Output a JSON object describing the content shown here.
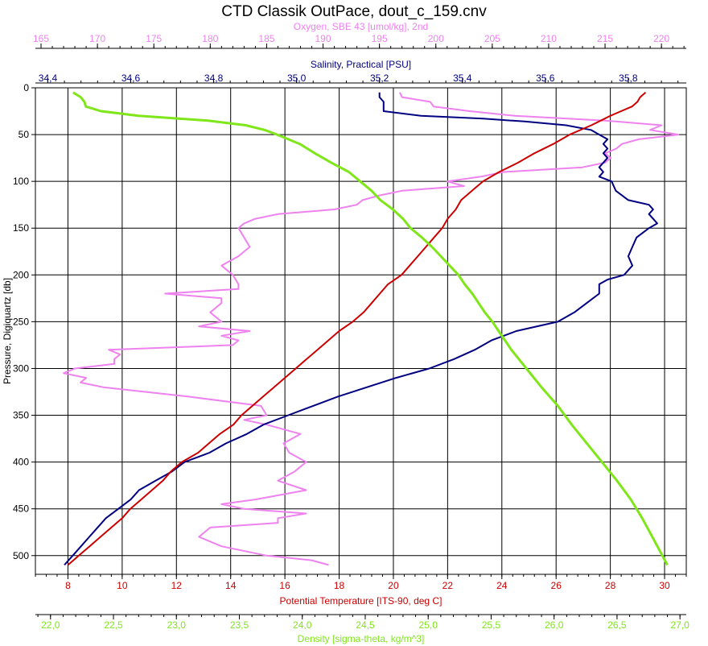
{
  "chart_data": {
    "type": "line",
    "title": "CTD Classik OutPace, dout_c_159.cnv",
    "colors": {
      "oxygen": "#ee82ee",
      "salinity": "#000080",
      "temperature": "#cc0000",
      "density": "#7fe61a",
      "grid": "#000000"
    },
    "grid": true,
    "y_axis": {
      "label": "Pressure, Digiquartz [db]",
      "range": [
        0,
        520
      ],
      "inverted": true,
      "ticks": [
        0,
        50,
        100,
        150,
        200,
        250,
        300,
        350,
        400,
        450,
        500
      ]
    },
    "x_axes": [
      {
        "key": "oxygen",
        "label": "Oxygen, SBE 43 [umol/kg], 2nd",
        "position": "top-outer",
        "range": [
          164.5,
          222.2
        ],
        "ticks": [
          165,
          170,
          175,
          180,
          185,
          190,
          195,
          200,
          205,
          210,
          215,
          220
        ],
        "tick_labels": [
          "165",
          "170",
          "175",
          "180",
          "185",
          "190",
          "195",
          "200",
          "205",
          "210",
          "215",
          "220"
        ]
      },
      {
        "key": "salinity",
        "label": "Salinity, Practical [PSU]",
        "position": "top-inner",
        "range": [
          34.37,
          35.94
        ],
        "ticks": [
          34.4,
          34.6,
          34.8,
          35.0,
          35.2,
          35.4,
          35.6,
          35.8
        ],
        "tick_labels": [
          "34,4",
          "34,6",
          "34,8",
          "35,0",
          "35,2",
          "35,4",
          "35,6",
          "35,8"
        ]
      },
      {
        "key": "temperature",
        "label": "Potential Temperature [ITS-90, deg C]",
        "position": "bottom-inner",
        "range": [
          6.8,
          30.8
        ],
        "ticks": [
          8,
          10,
          12,
          14,
          16,
          18,
          20,
          22,
          24,
          26,
          28,
          30
        ],
        "tick_labels": [
          "8",
          "10",
          "12",
          "14",
          "16",
          "18",
          "20",
          "22",
          "24",
          "26",
          "28",
          "30"
        ]
      },
      {
        "key": "density",
        "label": "Density [sigma-theta, kg/m^3]",
        "position": "bottom-outer",
        "range": [
          21.88,
          27.05
        ],
        "ticks": [
          22.0,
          22.5,
          23.0,
          23.5,
          24.0,
          24.5,
          25.0,
          25.5,
          26.0,
          26.5,
          27.0
        ],
        "tick_labels": [
          "22,0",
          "22,5",
          "23,0",
          "23,5",
          "24,0",
          "24,5",
          "25,0",
          "25,5",
          "26,0",
          "26,5",
          "27,0"
        ]
      }
    ],
    "series": [
      {
        "key": "oxygen",
        "pressure": [
          5,
          10,
          15,
          20,
          25,
          30,
          35,
          40,
          45,
          50,
          55,
          60,
          65,
          70,
          75,
          80,
          85,
          90,
          95,
          100,
          105,
          110,
          115,
          120,
          125,
          130,
          135,
          140,
          145,
          150,
          160,
          170,
          180,
          190,
          200,
          210,
          215,
          220,
          225,
          230,
          240,
          250,
          255,
          260,
          265,
          270,
          275,
          280,
          285,
          290,
          295,
          300,
          305,
          310,
          315,
          320,
          330,
          340,
          350,
          355,
          360,
          370,
          380,
          390,
          400,
          410,
          420,
          430,
          440,
          445,
          450,
          455,
          460,
          465,
          470,
          480,
          490,
          500,
          505,
          510
        ],
        "values": [
          196.8,
          197.0,
          199.5,
          199.8,
          203.0,
          207.0,
          215.0,
          220.0,
          219.0,
          221.5,
          218.0,
          216.5,
          216.0,
          215.0,
          215.5,
          215.0,
          213.0,
          206.0,
          204.0,
          201.0,
          202.5,
          197.0,
          195.0,
          193.5,
          193.0,
          191.0,
          186.0,
          184.0,
          183.0,
          182.5,
          183.0,
          183.5,
          182.5,
          181.0,
          182.0,
          182.5,
          182.5,
          176.0,
          181.0,
          181.0,
          180.0,
          181.0,
          179.0,
          183.5,
          181.0,
          182.5,
          182.0,
          171.0,
          172.0,
          171.5,
          171.5,
          168.0,
          167.0,
          169.0,
          168.5,
          170.5,
          178.0,
          184.5,
          185.0,
          183.0,
          185.0,
          188.0,
          186.5,
          187.0,
          188.5,
          187.5,
          186.0,
          188.5,
          184.0,
          181.0,
          183.0,
          188.5,
          186.0,
          186.0,
          180.0,
          179.0,
          181.0,
          185.0,
          189.0,
          190.5
        ]
      },
      {
        "key": "salinity",
        "pressure": [
          5,
          10,
          15,
          20,
          25,
          30,
          33,
          36,
          40,
          45,
          50,
          55,
          60,
          65,
          70,
          75,
          80,
          85,
          90,
          95,
          100,
          110,
          120,
          125,
          130,
          135,
          140,
          145,
          150,
          160,
          170,
          180,
          190,
          200,
          205,
          210,
          220,
          230,
          240,
          250,
          260,
          270,
          280,
          290,
          300,
          310,
          320,
          330,
          340,
          350,
          360,
          370,
          380,
          390,
          400,
          410,
          420,
          430,
          440,
          450,
          460,
          470,
          480,
          490,
          500,
          505,
          510
        ],
        "values": [
          35.2,
          35.2,
          35.21,
          35.21,
          35.21,
          35.3,
          35.45,
          35.55,
          35.65,
          35.71,
          35.73,
          35.75,
          35.74,
          35.75,
          35.74,
          35.75,
          35.74,
          35.73,
          35.74,
          35.73,
          35.76,
          35.77,
          35.8,
          35.85,
          35.86,
          35.85,
          35.86,
          35.87,
          35.85,
          35.82,
          35.81,
          35.8,
          35.81,
          35.79,
          35.75,
          35.73,
          35.73,
          35.7,
          35.67,
          35.63,
          35.53,
          35.47,
          35.43,
          35.38,
          35.32,
          35.24,
          35.17,
          35.1,
          35.04,
          34.98,
          34.92,
          34.88,
          34.83,
          34.79,
          34.73,
          34.7,
          34.66,
          34.62,
          34.6,
          34.57,
          34.54,
          34.52,
          34.5,
          34.48,
          34.46,
          34.45,
          34.44
        ]
      },
      {
        "key": "temperature",
        "pressure": [
          5,
          10,
          15,
          20,
          30,
          40,
          50,
          60,
          70,
          80,
          90,
          100,
          110,
          120,
          130,
          140,
          150,
          160,
          170,
          180,
          190,
          200,
          210,
          220,
          230,
          240,
          250,
          260,
          270,
          280,
          290,
          300,
          310,
          320,
          330,
          340,
          350,
          360,
          370,
          380,
          390,
          400,
          410,
          420,
          430,
          440,
          450,
          460,
          470,
          480,
          490,
          500,
          505,
          510
        ],
        "values": [
          29.3,
          29.1,
          29.0,
          28.8,
          28.0,
          27.3,
          26.5,
          25.9,
          25.2,
          24.6,
          23.9,
          23.3,
          22.9,
          22.5,
          22.3,
          22.0,
          21.8,
          21.5,
          21.2,
          20.9,
          20.6,
          20.3,
          19.8,
          19.5,
          19.2,
          18.9,
          18.5,
          18.0,
          17.6,
          17.2,
          16.8,
          16.4,
          16.0,
          15.6,
          15.2,
          14.8,
          14.4,
          14.1,
          13.6,
          13.2,
          12.8,
          12.2,
          11.8,
          11.5,
          11.1,
          10.7,
          10.3,
          10.0,
          9.6,
          9.2,
          8.8,
          8.4,
          8.2,
          8.0
        ]
      },
      {
        "key": "density",
        "pressure": [
          5,
          10,
          15,
          20,
          25,
          30,
          35,
          40,
          45,
          50,
          60,
          70,
          80,
          90,
          100,
          110,
          120,
          130,
          140,
          150,
          160,
          170,
          180,
          190,
          200,
          210,
          220,
          230,
          240,
          250,
          260,
          270,
          280,
          290,
          300,
          320,
          340,
          360,
          380,
          400,
          420,
          440,
          460,
          480,
          500,
          510
        ],
        "values": [
          22.18,
          22.24,
          22.27,
          22.28,
          22.4,
          22.7,
          23.25,
          23.55,
          23.7,
          23.8,
          23.98,
          24.1,
          24.23,
          24.37,
          24.46,
          24.55,
          24.62,
          24.72,
          24.8,
          24.86,
          24.95,
          25.03,
          25.1,
          25.17,
          25.24,
          25.29,
          25.35,
          25.4,
          25.45,
          25.51,
          25.56,
          25.61,
          25.66,
          25.72,
          25.78,
          25.9,
          26.03,
          26.14,
          26.26,
          26.38,
          26.5,
          26.61,
          26.7,
          26.78,
          26.86,
          26.9
        ]
      }
    ]
  }
}
